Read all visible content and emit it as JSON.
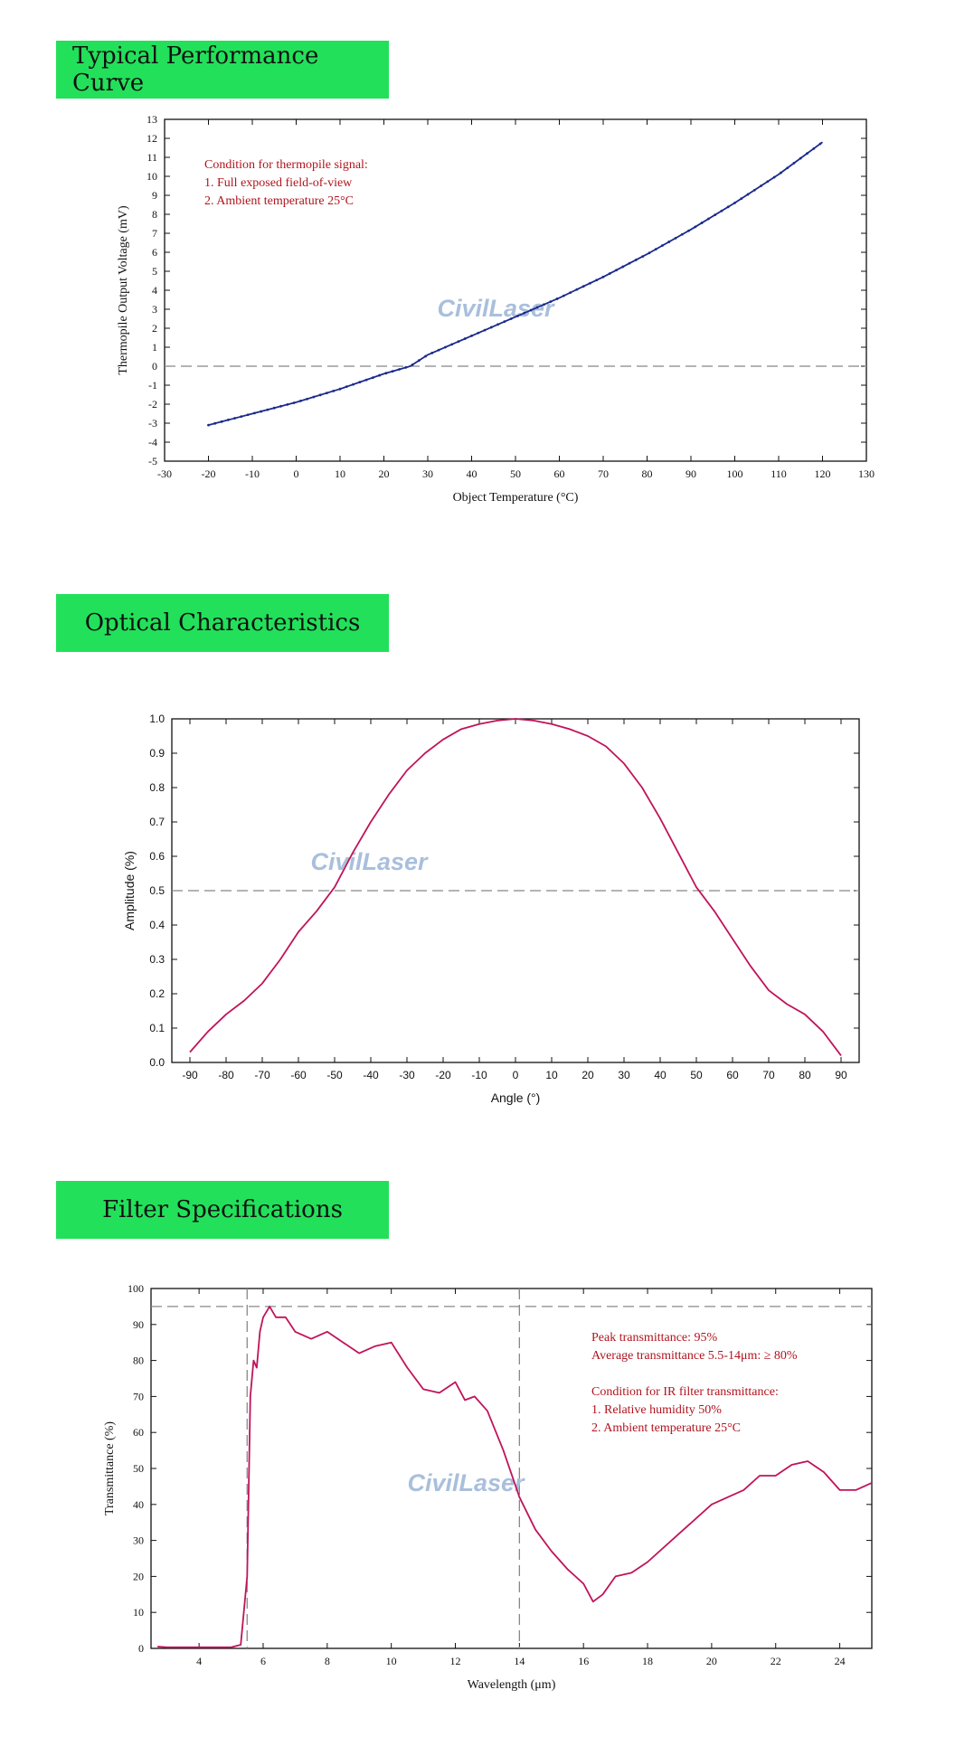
{
  "sections": {
    "performance": "Typical Performance Curve",
    "optical": "Optical Characteristics",
    "filter": "Filter Specifications"
  },
  "watermark": "CivilLaser",
  "colors": {
    "header_bg": "#22e05a",
    "curve1": "#1a2a8c",
    "curve2": "#c0145a",
    "annotation": "#b0141e",
    "refline": "#888888"
  },
  "chart_data": [
    {
      "type": "line",
      "xlabel": "Object Temperature (°C)",
      "ylabel": "Thermopile Output Voltage (mV)",
      "xlim": [
        -30,
        130
      ],
      "ylim": [
        -5,
        13
      ],
      "xticks": [
        "-30",
        "-20",
        "-10",
        "0",
        "10",
        "20",
        "30",
        "40",
        "50",
        "60",
        "70",
        "80",
        "90",
        "100",
        "110",
        "120",
        "130"
      ],
      "yticks": [
        "-5",
        "-4",
        "-3",
        "-2",
        "-1",
        "0",
        "1",
        "2",
        "3",
        "4",
        "5",
        "6",
        "7",
        "8",
        "9",
        "10",
        "11",
        "12",
        "13"
      ],
      "reference_line_y": 0,
      "annotations": [
        "Condition for thermopile signal:",
        "1. Full exposed field-of-view",
        "2. Ambient temperature 25°C"
      ],
      "x": [
        -20,
        -10,
        0,
        10,
        20,
        26,
        30,
        40,
        50,
        60,
        70,
        80,
        90,
        100,
        110,
        120
      ],
      "y": [
        -3.1,
        -2.5,
        -1.9,
        -1.2,
        -0.4,
        0.0,
        0.6,
        1.6,
        2.6,
        3.6,
        4.7,
        5.9,
        7.2,
        8.6,
        10.1,
        11.8
      ]
    },
    {
      "type": "line",
      "xlabel": "Angle (°)",
      "ylabel": "Amplitude (%)",
      "xlim": [
        -95,
        95
      ],
      "ylim": [
        0,
        1.0
      ],
      "xticks": [
        "-90",
        "-80",
        "-70",
        "-60",
        "-50",
        "-40",
        "-30",
        "-20",
        "-10",
        "0",
        "10",
        "20",
        "30",
        "40",
        "50",
        "60",
        "70",
        "80",
        "90"
      ],
      "yticks": [
        "0.0",
        "0.1",
        "0.2",
        "0.3",
        "0.4",
        "0.5",
        "0.6",
        "0.7",
        "0.8",
        "0.9",
        "1.0"
      ],
      "reference_line_y": 0.5,
      "x": [
        -90,
        -85,
        -80,
        -75,
        -70,
        -65,
        -60,
        -55,
        -50,
        -45,
        -40,
        -35,
        -30,
        -25,
        -20,
        -15,
        -10,
        -5,
        0,
        5,
        10,
        15,
        20,
        25,
        30,
        35,
        40,
        45,
        50,
        55,
        60,
        65,
        70,
        75,
        80,
        85,
        90
      ],
      "y": [
        0.03,
        0.09,
        0.14,
        0.18,
        0.23,
        0.3,
        0.38,
        0.44,
        0.51,
        0.61,
        0.7,
        0.78,
        0.85,
        0.9,
        0.94,
        0.97,
        0.985,
        0.995,
        1.0,
        0.995,
        0.985,
        0.97,
        0.95,
        0.92,
        0.87,
        0.8,
        0.71,
        0.61,
        0.51,
        0.44,
        0.36,
        0.28,
        0.21,
        0.17,
        0.14,
        0.09,
        0.02
      ]
    },
    {
      "type": "line",
      "xlabel": "Wavelength (μm)",
      "ylabel": "Transmittance (%)",
      "xlim": [
        2.5,
        25
      ],
      "ylim": [
        0,
        100
      ],
      "xticks": [
        "4",
        "6",
        "8",
        "10",
        "12",
        "14",
        "16",
        "18",
        "20",
        "22",
        "24"
      ],
      "yticks": [
        "0",
        "10",
        "20",
        "30",
        "40",
        "50",
        "60",
        "70",
        "80",
        "90",
        "100"
      ],
      "reference_line_y": 95,
      "reference_lines_x": [
        5.5,
        14
      ],
      "annotations": [
        "Peak transmittance: 95%",
        "Average transmittance 5.5-14μm: ≥ 80%",
        "",
        "Condition for IR filter transmittance:",
        "1. Relative humidity 50%",
        "2. Ambient temperature 25°C"
      ],
      "x": [
        2.7,
        3.0,
        4.0,
        5.0,
        5.3,
        5.5,
        5.6,
        5.7,
        5.8,
        5.9,
        6.0,
        6.2,
        6.4,
        6.7,
        7.0,
        7.5,
        8.0,
        8.5,
        9.0,
        9.5,
        10.0,
        10.5,
        11.0,
        11.5,
        12.0,
        12.3,
        12.6,
        13.0,
        13.5,
        14.0,
        14.5,
        15.0,
        15.5,
        16.0,
        16.3,
        16.6,
        17.0,
        17.5,
        18.0,
        19.0,
        20.0,
        21.0,
        21.5,
        22.0,
        22.5,
        23.0,
        23.5,
        24.0,
        24.5,
        25.0
      ],
      "y": [
        0.5,
        0.3,
        0.3,
        0.3,
        1.0,
        20,
        70,
        80,
        78,
        88,
        92,
        95,
        92,
        92,
        88,
        86,
        88,
        85,
        82,
        84,
        85,
        78,
        72,
        71,
        74,
        69,
        70,
        66,
        55,
        42,
        33,
        27,
        22,
        18,
        13,
        15,
        20,
        21,
        24,
        32,
        40,
        44,
        48,
        48,
        51,
        52,
        49,
        44,
        44,
        46
      ]
    }
  ]
}
